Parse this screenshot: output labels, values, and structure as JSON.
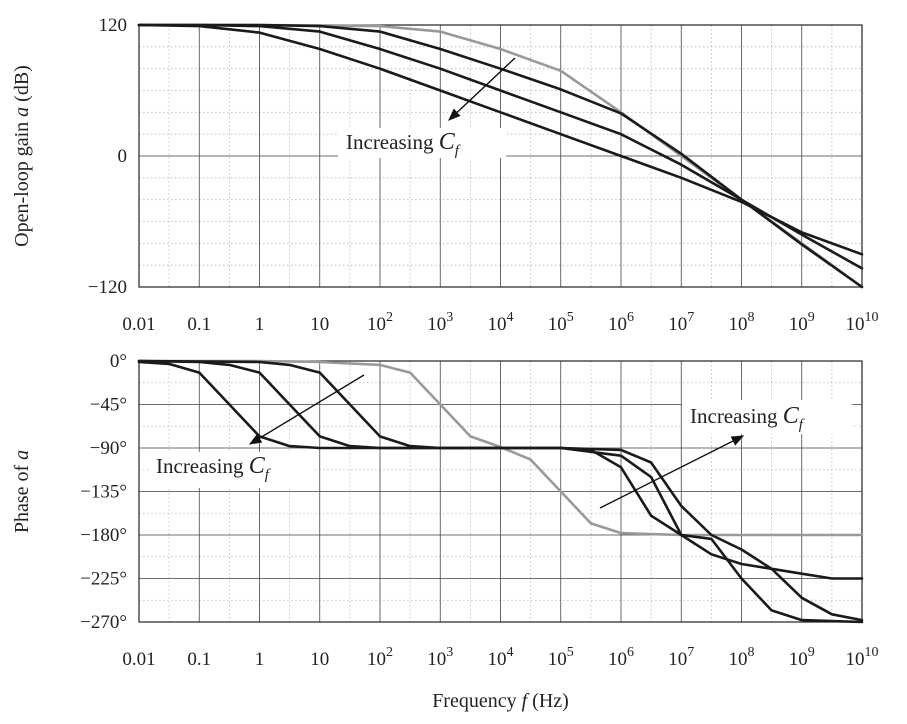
{
  "chart_data": [
    {
      "type": "line",
      "xscale": "log",
      "xlim": [
        0.01,
        10000000000
      ],
      "ylim": [
        -120,
        120
      ],
      "ylabel_prefix": "Open-loop gain ",
      "ylabel_var": "a",
      "ylabel_suffix": " (dB)",
      "xticks": [
        {
          "base": "0.01",
          "exp": ""
        },
        {
          "base": "0.1",
          "exp": ""
        },
        {
          "base": "1",
          "exp": ""
        },
        {
          "base": "10",
          "exp": ""
        },
        {
          "base": "10",
          "exp": "2"
        },
        {
          "base": "10",
          "exp": "3"
        },
        {
          "base": "10",
          "exp": "4"
        },
        {
          "base": "10",
          "exp": "5"
        },
        {
          "base": "10",
          "exp": "6"
        },
        {
          "base": "10",
          "exp": "7"
        },
        {
          "base": "10",
          "exp": "8"
        },
        {
          "base": "10",
          "exp": "9"
        },
        {
          "base": "10",
          "exp": "10"
        }
      ],
      "yticks": [
        "120",
        "0",
        "−120"
      ],
      "yticks_values": [
        120,
        0,
        -120
      ],
      "grid": true,
      "annotation": {
        "text": "Increasing ",
        "var": "C",
        "sub": "f"
      },
      "series": [
        {
          "color": "#999999",
          "x": [
            0.01,
            1,
            100,
            1000,
            10000,
            100000,
            1000000,
            10000000,
            100000000,
            1000000000,
            10000000000
          ],
          "y": [
            120,
            120,
            119,
            114,
            98,
            78,
            40,
            0,
            -40,
            -80,
            -120
          ]
        },
        {
          "color": "#1a1a1a",
          "x": [
            0.01,
            1,
            10,
            100,
            1000,
            10000,
            100000,
            1000000,
            10000000,
            100000000,
            1000000000,
            10000000000
          ],
          "y": [
            120,
            120,
            119,
            114,
            98,
            80,
            61,
            39,
            2,
            -40,
            -81,
            -120
          ]
        },
        {
          "color": "#1a1a1a",
          "x": [
            0.01,
            0.1,
            1,
            10,
            100,
            1000,
            10000,
            100000,
            1000000,
            10000000,
            100000000,
            1000000000,
            10000000000
          ],
          "y": [
            120,
            120,
            119,
            114,
            98,
            80,
            60,
            40,
            20,
            -8,
            -40,
            -72,
            -103
          ]
        },
        {
          "color": "#1a1a1a",
          "x": [
            0.01,
            0.1,
            1,
            10,
            100,
            1000,
            10000,
            100000,
            1000000,
            10000000,
            100000000,
            1000000000,
            10000000000
          ],
          "y": [
            120,
            119,
            113,
            98,
            80,
            60,
            40,
            20,
            0,
            -20,
            -42,
            -70,
            -90
          ]
        }
      ]
    },
    {
      "type": "line",
      "xscale": "log",
      "xlim": [
        0.01,
        10000000000
      ],
      "ylim": [
        -270,
        0
      ],
      "ylabel_prefix": "Phase of ",
      "ylabel_var": "a",
      "ylabel_suffix": "",
      "xlabel_prefix": "Frequency ",
      "xlabel_var": "f",
      "xlabel_suffix": " (Hz)",
      "xticks": [
        {
          "base": "0.01",
          "exp": ""
        },
        {
          "base": "0.1",
          "exp": ""
        },
        {
          "base": "1",
          "exp": ""
        },
        {
          "base": "10",
          "exp": ""
        },
        {
          "base": "10",
          "exp": "2"
        },
        {
          "base": "10",
          "exp": "3"
        },
        {
          "base": "10",
          "exp": "4"
        },
        {
          "base": "10",
          "exp": "5"
        },
        {
          "base": "10",
          "exp": "6"
        },
        {
          "base": "10",
          "exp": "7"
        },
        {
          "base": "10",
          "exp": "8"
        },
        {
          "base": "10",
          "exp": "9"
        },
        {
          "base": "10",
          "exp": "10"
        }
      ],
      "yticks": [
        "0°",
        "−45°",
        "−90°",
        "−135°",
        "−180°",
        "−225°",
        "−270°"
      ],
      "yticks_values": [
        0,
        -45,
        -90,
        -135,
        -180,
        -225,
        -270
      ],
      "grid": true,
      "annotations": [
        {
          "text": "Increasing ",
          "var": "C",
          "sub": "f"
        },
        {
          "text": "Increasing ",
          "var": "C",
          "sub": "f"
        }
      ],
      "series": [
        {
          "color": "#999999",
          "x": [
            0.01,
            1,
            10,
            100,
            316,
            1000,
            3160,
            10000,
            31600,
            100000,
            316000,
            1000000,
            10000000,
            100000000,
            1000000000,
            10000000000
          ],
          "y": [
            0,
            0,
            -1,
            -4,
            -12,
            -45,
            -78,
            -89,
            -102,
            -135,
            -168,
            -178,
            -180,
            -180,
            -180,
            -180
          ]
        },
        {
          "color": "#1a1a1a",
          "x": [
            0.01,
            1,
            3.16,
            10,
            31.6,
            100,
            316,
            1000,
            10000,
            100000,
            1000000,
            3160000,
            10000000,
            31600000,
            100000000,
            316000000,
            1000000000,
            3160000000,
            10000000000
          ],
          "y": [
            0,
            -1,
            -4,
            -12,
            -45,
            -78,
            -88,
            -90,
            -90,
            -90,
            -98,
            -120,
            -180,
            -200,
            -210,
            -215,
            -220,
            -225,
            -225
          ]
        },
        {
          "color": "#1a1a1a",
          "x": [
            0.01,
            0.1,
            0.316,
            1,
            3.16,
            10,
            31.6,
            100,
            1000,
            10000,
            100000,
            1000000,
            3160000,
            10000000,
            31600000,
            100000000,
            316000000,
            1000000000,
            3160000000,
            10000000000
          ],
          "y": [
            0,
            -1,
            -4,
            -12,
            -45,
            -78,
            -88,
            -90,
            -90,
            -90,
            -90,
            -92,
            -105,
            -150,
            -180,
            -195,
            -215,
            -245,
            -262,
            -268
          ]
        },
        {
          "color": "#1a1a1a",
          "x": [
            0.01,
            0.0316,
            0.1,
            0.316,
            1,
            3.16,
            10,
            100,
            1000,
            10000,
            100000,
            316000,
            1000000,
            3160000,
            10000000,
            31600000,
            100000000,
            316000000,
            1000000000,
            10000000000
          ],
          "y": [
            -1,
            -3,
            -12,
            -45,
            -78,
            -88,
            -90,
            -90,
            -90,
            -90,
            -90,
            -92,
            -110,
            -160,
            -180,
            -184,
            -225,
            -258,
            -268,
            -270
          ]
        }
      ]
    }
  ]
}
